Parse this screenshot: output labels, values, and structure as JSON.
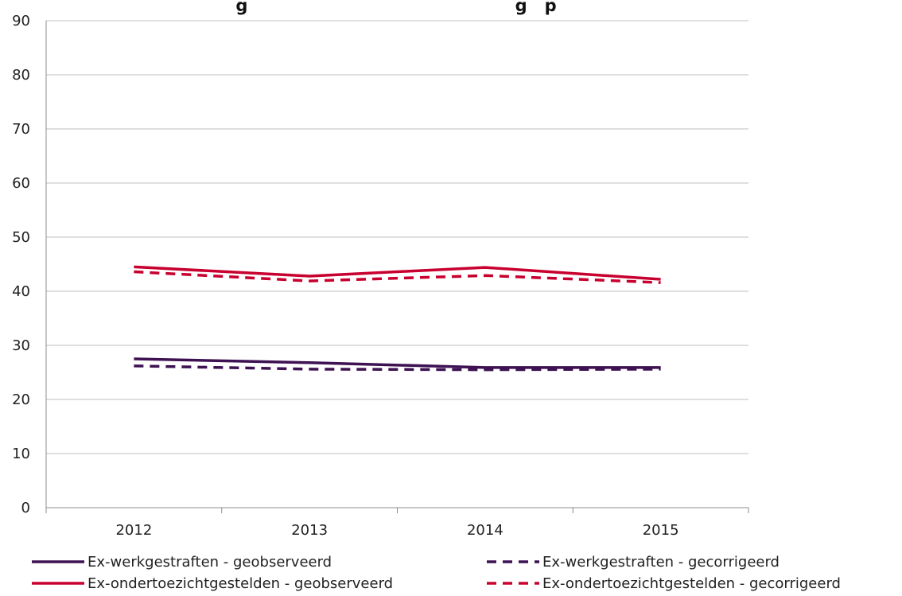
{
  "chart_data": {
    "type": "line",
    "title": "g                                              g   p",
    "xlabel": "",
    "ylabel": "",
    "categories": [
      "2012",
      "2013",
      "2014",
      "2015"
    ],
    "ylim": [
      0,
      90
    ],
    "yticks": [
      0,
      10,
      20,
      30,
      40,
      50,
      60,
      70,
      80,
      90
    ],
    "grid": true,
    "legend_position": "bottom",
    "series": [
      {
        "name": "Ex-werkgestraften - geobserveerd",
        "values": [
          27.5,
          26.8,
          25.9,
          25.9
        ],
        "color": "#3d1152",
        "dash": "solid"
      },
      {
        "name": "Ex-werkgestraften - gecorrigeerd",
        "values": [
          26.2,
          25.6,
          25.5,
          25.6
        ],
        "color": "#3d1152",
        "dash": "dashed"
      },
      {
        "name": "Ex-ondertoezichtgestelden - geobserveerd",
        "values": [
          44.5,
          42.8,
          44.4,
          42.2
        ],
        "color": "#c8002f",
        "dash": "solid"
      },
      {
        "name": "Ex-ondertoezichtgestelden - gecorrigeerd",
        "values": [
          43.6,
          41.9,
          42.9,
          41.6
        ],
        "color": "#c8002f",
        "dash": "dashed"
      }
    ]
  }
}
